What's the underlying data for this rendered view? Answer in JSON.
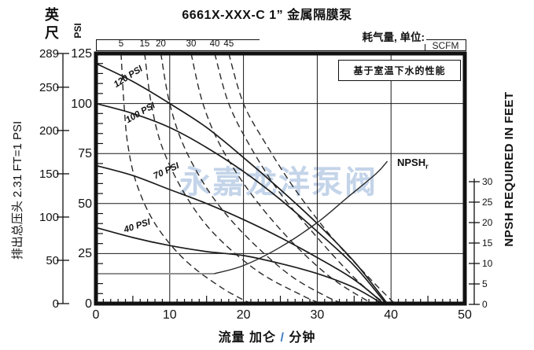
{
  "title": "6661X-XXX-C 1” 金属隔膜泵",
  "watermark": "永嘉龙洋泵阀",
  "top_axis": {
    "label": "耗气量, 单位:",
    "unit": "SCFM",
    "ticks": [
      5,
      15,
      20,
      30,
      40,
      45
    ]
  },
  "note_box": "基于室温下水的性能",
  "left_axis": {
    "feet_unit": "英尺",
    "psi_unit": "PSI",
    "axis_label": "排出总压头 2.31 FT=1 PSI",
    "feet_ticks": [
      289,
      250,
      200,
      150,
      100,
      50,
      0
    ],
    "psi_ticks": [
      125,
      100,
      75,
      50,
      25,
      0
    ]
  },
  "right_axis": {
    "axis_label": "NPSH REQUIRED IN FEET",
    "ticks": [
      30,
      25,
      20,
      15,
      10,
      5,
      0
    ]
  },
  "x_axis": {
    "axis_label_prefix": "流量 加仑 ",
    "axis_label_slash": "/",
    "axis_label_suffix": " 分钟",
    "ticks": [
      0,
      10,
      20,
      30,
      40,
      50
    ]
  },
  "npsh_curve_label": {
    "text": "NPSH",
    "subscript": "r"
  },
  "colors": {
    "curve": "#1c1c1c",
    "dashed_curve": "#2a2a2a",
    "npsh_flat": "#909090",
    "watermark": "#9db8dc",
    "slash_accent": "#3f7cc0"
  },
  "chart_data": {
    "type": "line",
    "title": "6661X-XXX-C 1” 金属隔膜泵",
    "xlabel": "流量 加仑 / 分钟 (GPM)",
    "ylabel_left_psi": "排出总压头 (PSI)",
    "ylabel_left_feet": "排出总压头 (英尺, 2.31 FT = 1 PSI)",
    "ylabel_right": "NPSH REQUIRED IN FEET",
    "xlim": [
      0,
      50
    ],
    "ylim_psi": [
      0,
      125
    ],
    "ylim_feet": [
      0,
      289
    ],
    "ylim_npsh_feet": [
      0,
      30
    ],
    "grid": true,
    "x_gridlines": [
      10,
      20,
      30,
      40
    ],
    "psi_gridlines": [
      25,
      50,
      75,
      100
    ],
    "discharge_curves": [
      {
        "name": "120 PSI",
        "style": "solid",
        "points_gpm_psi": [
          [
            0,
            120
          ],
          [
            5,
            111
          ],
          [
            10,
            100
          ],
          [
            15,
            88
          ],
          [
            20,
            73
          ],
          [
            25,
            57
          ],
          [
            30,
            40
          ],
          [
            35,
            21
          ],
          [
            39.5,
            0
          ]
        ]
      },
      {
        "name": "100 PSI",
        "style": "solid",
        "points_gpm_psi": [
          [
            0,
            100
          ],
          [
            5,
            95
          ],
          [
            10,
            88
          ],
          [
            15,
            78
          ],
          [
            20,
            66
          ],
          [
            25,
            52
          ],
          [
            30,
            36
          ],
          [
            35,
            19
          ],
          [
            39.3,
            0
          ]
        ]
      },
      {
        "name": "70 PSI",
        "style": "solid",
        "points_gpm_psi": [
          [
            0,
            69
          ],
          [
            5,
            64
          ],
          [
            10,
            57
          ],
          [
            15,
            50
          ],
          [
            20,
            42
          ],
          [
            25,
            33
          ],
          [
            30,
            23
          ],
          [
            35,
            12
          ],
          [
            39,
            0
          ]
        ]
      },
      {
        "name": "40 PSI",
        "style": "solid",
        "points_gpm_psi": [
          [
            0,
            38
          ],
          [
            5,
            33
          ],
          [
            10,
            29
          ],
          [
            15,
            26
          ],
          [
            20,
            24
          ],
          [
            25,
            20
          ],
          [
            30,
            15
          ],
          [
            35,
            8
          ],
          [
            38.8,
            0
          ]
        ]
      }
    ],
    "air_consumption_curves_scfm": [
      {
        "name": "5",
        "style": "dashed",
        "points_gpm_psi": [
          [
            3.4,
            125
          ],
          [
            3.8,
            100
          ],
          [
            4.3,
            80
          ],
          [
            5.5,
            60
          ],
          [
            8,
            40
          ],
          [
            12,
            22
          ],
          [
            17,
            8
          ],
          [
            21,
            0
          ]
        ]
      },
      {
        "name": "15",
        "style": "dashed",
        "points_gpm_psi": [
          [
            6.6,
            125
          ],
          [
            7.5,
            100
          ],
          [
            9,
            78
          ],
          [
            12,
            55
          ],
          [
            16,
            35
          ],
          [
            22,
            16
          ],
          [
            28,
            4
          ],
          [
            30.5,
            0
          ]
        ]
      },
      {
        "name": "20",
        "style": "dashed",
        "points_gpm_psi": [
          [
            8.8,
            125
          ],
          [
            10,
            100
          ],
          [
            12,
            78
          ],
          [
            15.5,
            55
          ],
          [
            20,
            35
          ],
          [
            26,
            15
          ],
          [
            31,
            4
          ],
          [
            33.5,
            0
          ]
        ]
      },
      {
        "name": "30",
        "style": "dashed",
        "points_gpm_psi": [
          [
            12.9,
            125
          ],
          [
            14.5,
            100
          ],
          [
            17,
            78
          ],
          [
            21,
            55
          ],
          [
            26,
            33
          ],
          [
            31.5,
            14
          ],
          [
            36.5,
            2
          ],
          [
            37.8,
            0
          ]
        ]
      },
      {
        "name": "40",
        "style": "dashed",
        "points_gpm_psi": [
          [
            16.1,
            125
          ],
          [
            18,
            100
          ],
          [
            21,
            78
          ],
          [
            25,
            55
          ],
          [
            30,
            33
          ],
          [
            35,
            13
          ],
          [
            38.5,
            2
          ],
          [
            39.8,
            0
          ]
        ]
      },
      {
        "name": "45",
        "style": "dashed",
        "points_gpm_psi": [
          [
            18,
            125
          ],
          [
            20,
            100
          ],
          [
            23,
            80
          ],
          [
            27,
            57
          ],
          [
            32,
            33
          ],
          [
            37,
            13
          ],
          [
            40.5,
            0
          ]
        ]
      }
    ],
    "npsh_curve": {
      "name": "NPSHr",
      "axis": "right",
      "flat_points_gpm_feet": [
        [
          0,
          7.5
        ],
        [
          16,
          7.5
        ]
      ],
      "rising_points_gpm_feet": [
        [
          16,
          7.5
        ],
        [
          20,
          9.5
        ],
        [
          25,
          14
        ],
        [
          30,
          20
        ],
        [
          34,
          26
        ],
        [
          38,
          32
        ],
        [
          39.5,
          35
        ]
      ]
    }
  }
}
